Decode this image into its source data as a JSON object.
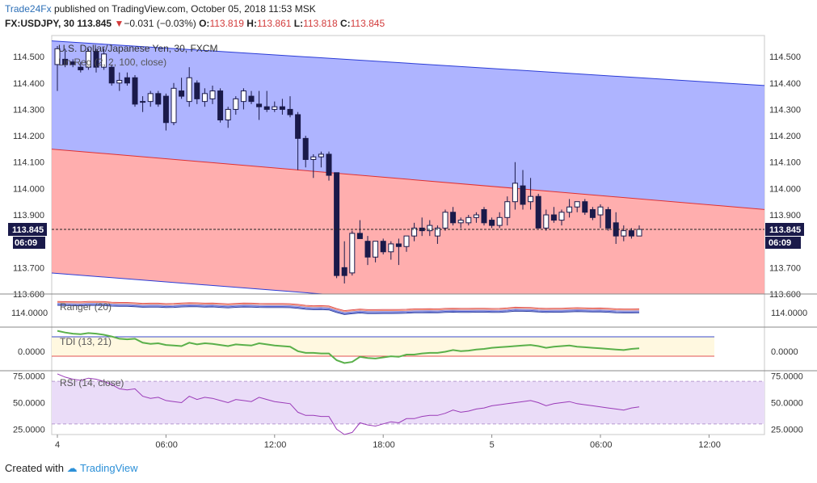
{
  "header": {
    "publisher": "Trade24Fx",
    "published_text": "published on TradingView.com, October 05, 2018 11:53 MSK",
    "symbol": "FX:USDJPY, 30",
    "last": "113.845",
    "change_arrow": "▼",
    "change": "−0.031 (−0.03%)",
    "open_label": "O:",
    "open": "113.819",
    "high_label": "H:",
    "high": "113.861",
    "low_label": "L:",
    "low": "113.818",
    "close_label": "C:",
    "close": "113.845"
  },
  "footer": {
    "created_with": "Created with",
    "brand": "TradingView"
  },
  "colors": {
    "up": "#ffffff",
    "down": "#1a1a4a",
    "upper_band": "#aab0ff",
    "lower_band": "#ffaaaa",
    "channel_line": "#2a3bd6",
    "mid_line": "#e03030",
    "rsi_band": "#eadcf8",
    "rsi_line": "#9a3ab8"
  },
  "chart_data": [
    {
      "type": "candlestick",
      "title": "U.S. Dollar/Japanese Yen, 30, FXCM",
      "indicator": "Lin Reg (2, 2, 100, close)",
      "yticks": [
        "114.500",
        "114.400",
        "114.300",
        "114.200",
        "114.100",
        "114.000",
        "113.900",
        "113.800",
        "113.700",
        "113.600"
      ],
      "ylim": [
        113.6,
        114.58
      ],
      "xticks": [
        "4",
        "06:00",
        "12:00",
        "18:00",
        "5",
        "06:00",
        "12:00"
      ],
      "last_price": "113.845",
      "countdown": "06:09",
      "linreg_channel": {
        "upper": [
          114.56,
          114.39
        ],
        "middle": [
          114.15,
          113.92
        ],
        "lower": [
          113.68,
          113.47
        ]
      },
      "candles": [
        {
          "o": 114.47,
          "h": 114.54,
          "l": 114.37,
          "c": 114.53
        },
        {
          "o": 114.49,
          "h": 114.53,
          "l": 114.46,
          "c": 114.47
        },
        {
          "o": 114.48,
          "h": 114.49,
          "l": 114.46,
          "c": 114.47
        },
        {
          "o": 114.46,
          "h": 114.48,
          "l": 114.44,
          "c": 114.45
        },
        {
          "o": 114.46,
          "h": 114.53,
          "l": 114.45,
          "c": 114.52
        },
        {
          "o": 114.52,
          "h": 114.53,
          "l": 114.44,
          "c": 114.46
        },
        {
          "o": 114.46,
          "h": 114.53,
          "l": 114.45,
          "c": 114.51
        },
        {
          "o": 114.46,
          "h": 114.47,
          "l": 114.39,
          "c": 114.4
        },
        {
          "o": 114.4,
          "h": 114.44,
          "l": 114.37,
          "c": 114.41
        },
        {
          "o": 114.42,
          "h": 114.44,
          "l": 114.39,
          "c": 114.4
        },
        {
          "o": 114.42,
          "h": 114.43,
          "l": 114.31,
          "c": 114.32
        },
        {
          "o": 114.33,
          "h": 114.35,
          "l": 114.29,
          "c": 114.33
        },
        {
          "o": 114.33,
          "h": 114.37,
          "l": 114.31,
          "c": 114.36
        },
        {
          "o": 114.36,
          "h": 114.37,
          "l": 114.31,
          "c": 114.32
        },
        {
          "o": 114.35,
          "h": 114.36,
          "l": 114.22,
          "c": 114.25
        },
        {
          "o": 114.25,
          "h": 114.4,
          "l": 114.24,
          "c": 114.38
        },
        {
          "o": 114.37,
          "h": 114.42,
          "l": 114.34,
          "c": 114.35
        },
        {
          "o": 114.33,
          "h": 114.46,
          "l": 114.31,
          "c": 114.42
        },
        {
          "o": 114.4,
          "h": 114.41,
          "l": 114.32,
          "c": 114.34
        },
        {
          "o": 114.33,
          "h": 114.38,
          "l": 114.31,
          "c": 114.36
        },
        {
          "o": 114.34,
          "h": 114.39,
          "l": 114.32,
          "c": 114.37
        },
        {
          "o": 114.37,
          "h": 114.38,
          "l": 114.25,
          "c": 114.26
        },
        {
          "o": 114.26,
          "h": 114.31,
          "l": 114.23,
          "c": 114.3
        },
        {
          "o": 114.3,
          "h": 114.35,
          "l": 114.28,
          "c": 114.34
        },
        {
          "o": 114.33,
          "h": 114.38,
          "l": 114.3,
          "c": 114.37
        },
        {
          "o": 114.35,
          "h": 114.37,
          "l": 114.32,
          "c": 114.33
        },
        {
          "o": 114.32,
          "h": 114.37,
          "l": 114.26,
          "c": 114.31
        },
        {
          "o": 114.31,
          "h": 114.37,
          "l": 114.29,
          "c": 114.3
        },
        {
          "o": 114.3,
          "h": 114.33,
          "l": 114.29,
          "c": 114.31
        },
        {
          "o": 114.31,
          "h": 114.34,
          "l": 114.28,
          "c": 114.3
        },
        {
          "o": 114.3,
          "h": 114.35,
          "l": 114.27,
          "c": 114.28
        },
        {
          "o": 114.28,
          "h": 114.29,
          "l": 114.07,
          "c": 114.19
        },
        {
          "o": 114.19,
          "h": 114.2,
          "l": 114.08,
          "c": 114.11
        },
        {
          "o": 114.11,
          "h": 114.13,
          "l": 114.04,
          "c": 114.12
        },
        {
          "o": 114.12,
          "h": 114.14,
          "l": 114.08,
          "c": 114.13
        },
        {
          "o": 114.13,
          "h": 114.14,
          "l": 114.03,
          "c": 114.05
        },
        {
          "o": 114.06,
          "h": 114.06,
          "l": 113.66,
          "c": 113.67
        },
        {
          "o": 113.7,
          "h": 113.8,
          "l": 113.64,
          "c": 113.67
        },
        {
          "o": 113.68,
          "h": 113.84,
          "l": 113.67,
          "c": 113.83
        },
        {
          "o": 113.83,
          "h": 113.88,
          "l": 113.81,
          "c": 113.81
        },
        {
          "o": 113.8,
          "h": 113.82,
          "l": 113.71,
          "c": 113.74
        },
        {
          "o": 113.74,
          "h": 113.8,
          "l": 113.72,
          "c": 113.8
        },
        {
          "o": 113.8,
          "h": 113.81,
          "l": 113.75,
          "c": 113.76
        },
        {
          "o": 113.76,
          "h": 113.8,
          "l": 113.73,
          "c": 113.79
        },
        {
          "o": 113.79,
          "h": 113.81,
          "l": 113.71,
          "c": 113.78
        },
        {
          "o": 113.78,
          "h": 113.82,
          "l": 113.76,
          "c": 113.82
        },
        {
          "o": 113.82,
          "h": 113.87,
          "l": 113.8,
          "c": 113.85
        },
        {
          "o": 113.85,
          "h": 113.89,
          "l": 113.82,
          "c": 113.84
        },
        {
          "o": 113.84,
          "h": 113.88,
          "l": 113.82,
          "c": 113.86
        },
        {
          "o": 113.82,
          "h": 113.86,
          "l": 113.79,
          "c": 113.85
        },
        {
          "o": 113.85,
          "h": 113.92,
          "l": 113.84,
          "c": 113.91
        },
        {
          "o": 113.91,
          "h": 113.93,
          "l": 113.86,
          "c": 113.87
        },
        {
          "o": 113.87,
          "h": 113.89,
          "l": 113.85,
          "c": 113.88
        },
        {
          "o": 113.87,
          "h": 113.9,
          "l": 113.86,
          "c": 113.89
        },
        {
          "o": 113.89,
          "h": 113.91,
          "l": 113.87,
          "c": 113.9
        },
        {
          "o": 113.92,
          "h": 113.93,
          "l": 113.86,
          "c": 113.87
        },
        {
          "o": 113.88,
          "h": 113.89,
          "l": 113.85,
          "c": 113.86
        },
        {
          "o": 113.86,
          "h": 113.91,
          "l": 113.85,
          "c": 113.89
        },
        {
          "o": 113.89,
          "h": 113.97,
          "l": 113.86,
          "c": 113.95
        },
        {
          "o": 113.95,
          "h": 114.1,
          "l": 113.92,
          "c": 114.02
        },
        {
          "o": 114.01,
          "h": 114.07,
          "l": 113.92,
          "c": 113.94
        },
        {
          "o": 113.95,
          "h": 114.04,
          "l": 113.92,
          "c": 113.97
        },
        {
          "o": 113.97,
          "h": 113.98,
          "l": 113.85,
          "c": 113.85
        },
        {
          "o": 113.85,
          "h": 113.92,
          "l": 113.84,
          "c": 113.9
        },
        {
          "o": 113.9,
          "h": 113.93,
          "l": 113.87,
          "c": 113.88
        },
        {
          "o": 113.88,
          "h": 113.92,
          "l": 113.86,
          "c": 113.91
        },
        {
          "o": 113.91,
          "h": 113.96,
          "l": 113.89,
          "c": 113.93
        },
        {
          "o": 113.93,
          "h": 113.95,
          "l": 113.91,
          "c": 113.95
        },
        {
          "o": 113.95,
          "h": 113.96,
          "l": 113.9,
          "c": 113.91
        },
        {
          "o": 113.92,
          "h": 113.93,
          "l": 113.88,
          "c": 113.89
        },
        {
          "o": 113.9,
          "h": 113.94,
          "l": 113.85,
          "c": 113.93
        },
        {
          "o": 113.92,
          "h": 113.93,
          "l": 113.84,
          "c": 113.85
        },
        {
          "o": 113.87,
          "h": 113.91,
          "l": 113.79,
          "c": 113.82
        },
        {
          "o": 113.82,
          "h": 113.86,
          "l": 113.8,
          "c": 113.84
        },
        {
          "o": 113.84,
          "h": 113.85,
          "l": 113.81,
          "c": 113.82
        },
        {
          "o": 113.82,
          "h": 113.86,
          "l": 113.82,
          "c": 113.845
        }
      ]
    },
    {
      "type": "line",
      "title": "Ranger (20)",
      "value_label": "114.0000"
    },
    {
      "type": "line",
      "title": "TDI (13, 21)",
      "value_label": "0.0000"
    },
    {
      "type": "line",
      "title": "RSI (14, close)",
      "yticks": [
        "75.0000",
        "50.0000",
        "25.0000"
      ],
      "ylim": [
        20,
        80
      ],
      "levels": [
        70,
        30
      ],
      "values": [
        77,
        74,
        72,
        71,
        73,
        72,
        70,
        67,
        63,
        62,
        63,
        56,
        54,
        55,
        52,
        51,
        50,
        56,
        53,
        55,
        54,
        52,
        50,
        53,
        52,
        51,
        55,
        53,
        51,
        50,
        49,
        41,
        38,
        38,
        37,
        37,
        25,
        20,
        22,
        31,
        29,
        28,
        30,
        32,
        31,
        35,
        35,
        37,
        38,
        38,
        40,
        43,
        41,
        42,
        44,
        45,
        47,
        48,
        49,
        50,
        51,
        52,
        50,
        47,
        49,
        50,
        51,
        49,
        48,
        47,
        46,
        45,
        44,
        43,
        45,
        46
      ]
    }
  ]
}
